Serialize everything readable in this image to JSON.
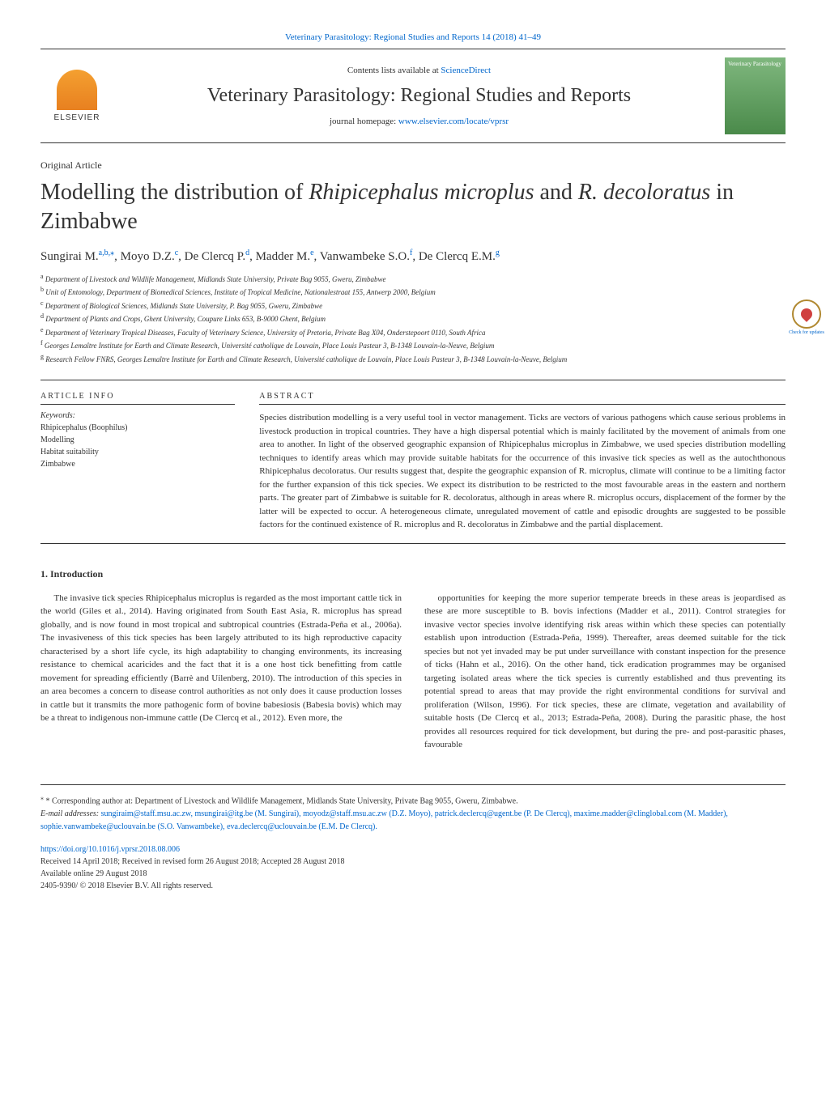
{
  "header": {
    "citation": "Veterinary Parasitology: Regional Studies and Reports 14 (2018) 41–49",
    "contents_label": "Contents lists available at ",
    "contents_link": "ScienceDirect",
    "journal_title": "Veterinary Parasitology: Regional Studies and Reports",
    "homepage_label": "journal homepage: ",
    "homepage_link": "www.elsevier.com/locate/vprsr",
    "elsevier_text": "ELSEVIER",
    "cover_text": "Veterinary Parasitology"
  },
  "article": {
    "type": "Original Article",
    "title": "Modelling the distribution of Rhipicephalus microplus and R. decoloratus in Zimbabwe",
    "authors_html": "Sungirai M.<sup>a,b,*</sup>, Moyo D.Z.<sup>c</sup>, De Clercq P.<sup>d</sup>, Madder M.<sup>e</sup>, Vanwambeke S.O.<sup>f</sup>, De Clercq E.M.<sup>g</sup>",
    "check_updates": "Check for updates"
  },
  "affiliations": [
    "a Department of Livestock and Wildlife Management, Midlands State University, Private Bag 9055, Gweru, Zimbabwe",
    "b Unit of Entomology, Department of Biomedical Sciences, Institute of Tropical Medicine, Nationalestraat 155, Antwerp 2000, Belgium",
    "c Department of Biological Sciences, Midlands State University, P. Bag 9055, Gweru, Zimbabwe",
    "d Department of Plants and Crops, Ghent University, Coupure Links 653, B-9000 Ghent, Belgium",
    "e Department of Veterinary Tropical Diseases, Faculty of Veterinary Science, University of Pretoria, Private Bag X04, Onderstepoort 0110, South Africa",
    "f Georges Lemaître Institute for Earth and Climate Research, Université catholique de Louvain, Place Louis Pasteur 3, B-1348 Louvain-la-Neuve, Belgium",
    "g Research Fellow FNRS, Georges Lemaître Institute for Earth and Climate Research, Université catholique de Louvain, Place Louis Pasteur 3, B-1348 Louvain-la-Neuve, Belgium"
  ],
  "info": {
    "heading": "ARTICLE INFO",
    "keywords_label": "Keywords:",
    "keywords": [
      "Rhipicephalus (Boophilus)",
      "Modelling",
      "Habitat suitability",
      "Zimbabwe"
    ]
  },
  "abstract": {
    "heading": "ABSTRACT",
    "text": "Species distribution modelling is a very useful tool in vector management. Ticks are vectors of various pathogens which cause serious problems in livestock production in tropical countries. They have a high dispersal potential which is mainly facilitated by the movement of animals from one area to another. In light of the observed geographic expansion of Rhipicephalus microplus in Zimbabwe, we used species distribution modelling techniques to identify areas which may provide suitable habitats for the occurrence of this invasive tick species as well as the autochthonous Rhipicephalus decoloratus. Our results suggest that, despite the geographic expansion of R. microplus, climate will continue to be a limiting factor for the further expansion of this tick species. We expect its distribution to be restricted to the most favourable areas in the eastern and northern parts. The greater part of Zimbabwe is suitable for R. decoloratus, although in areas where R. microplus occurs, displacement of the former by the latter will be expected to occur. A heterogeneous climate, unregulated movement of cattle and episodic droughts are suggested to be possible factors for the continued existence of R. microplus and R. decoloratus in Zimbabwe and the partial displacement."
  },
  "intro": {
    "heading": "1. Introduction",
    "col1": "The invasive tick species Rhipicephalus microplus is regarded as the most important cattle tick in the world (Giles et al., 2014). Having originated from South East Asia, R. microplus has spread globally, and is now found in most tropical and subtropical countries (Estrada-Peña et al., 2006a). The invasiveness of this tick species has been largely attributed to its high reproductive capacity characterised by a short life cycle, its high adaptability to changing environments, its increasing resistance to chemical acaricides and the fact that it is a one host tick benefitting from cattle movement for spreading efficiently (Barrè and Uilenberg, 2010). The introduction of this species in an area becomes a concern to disease control authorities as not only does it cause production losses in cattle but it transmits the more pathogenic form of bovine babesiosis (Babesia bovis) which may be a threat to indigenous non-immune cattle (De Clercq et al., 2012). Even more, the",
    "col2": "opportunities for keeping the more superior temperate breeds in these areas is jeopardised as these are more susceptible to B. bovis infections (Madder et al., 2011).\n\nControl strategies for invasive vector species involve identifying risk areas within which these species can potentially establish upon introduction (Estrada-Peña, 1999). Thereafter, areas deemed suitable for the tick species but not yet invaded may be put under surveillance with constant inspection for the presence of ticks (Hahn et al., 2016). On the other hand, tick eradication programmes may be organised targeting isolated areas where the tick species is currently established and thus preventing its potential spread to areas that may provide the right environmental conditions for survival and proliferation (Wilson, 1996). For tick species, these are climate, vegetation and availability of suitable hosts (De Clercq et al., 2013; Estrada-Peña, 2008). During the parasitic phase, the host provides all resources required for tick development, but during the pre- and post-parasitic phases, favourable"
  },
  "footer": {
    "corresponding": "* Corresponding author at: Department of Livestock and Wildlife Management, Midlands State University, Private Bag 9055, Gweru, Zimbabwe.",
    "email_label": "E-mail addresses: ",
    "emails": "sungiraim@staff.msu.ac.zw, msungirai@itg.be (M. Sungirai), moyodz@staff.msu.ac.zw (D.Z. Moyo), patrick.declercq@ugent.be (P. De Clercq), maxime.madder@clinglobal.com (M. Madder), sophie.vanwambeke@uclouvain.be (S.O. Vanwambeke), eva.declercq@uclouvain.be (E.M. De Clercq).",
    "doi": "https://doi.org/10.1016/j.vprsr.2018.08.006",
    "received": "Received 14 April 2018; Received in revised form 26 August 2018; Accepted 28 August 2018",
    "available": "Available online 29 August 2018",
    "copyright": "2405-9390/ © 2018 Elsevier B.V. All rights reserved."
  },
  "colors": {
    "link": "#0066cc",
    "text": "#333333",
    "border": "#333333",
    "elsevier_orange": "#e88020",
    "cover_green": "#4a8a4a"
  }
}
